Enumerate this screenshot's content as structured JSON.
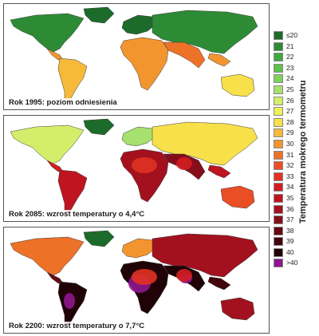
{
  "legend": {
    "title": "Temperatura mokrego termometru",
    "items": [
      {
        "label": "≤20",
        "color": "#1d6b2a"
      },
      {
        "label": "21",
        "color": "#2e8b35"
      },
      {
        "label": "22",
        "color": "#41a83c"
      },
      {
        "label": "23",
        "color": "#5cc24a"
      },
      {
        "label": "24",
        "color": "#7dd35a"
      },
      {
        "label": "25",
        "color": "#a6e06e"
      },
      {
        "label": "26",
        "color": "#d4ee6b"
      },
      {
        "label": "27",
        "color": "#eef25a"
      },
      {
        "label": "28",
        "color": "#f8e04a"
      },
      {
        "label": "29",
        "color": "#f7b93a"
      },
      {
        "label": "30",
        "color": "#f3952f"
      },
      {
        "label": "31",
        "color": "#ee7128"
      },
      {
        "label": "32",
        "color": "#e94e24"
      },
      {
        "label": "33",
        "color": "#e13222"
      },
      {
        "label": "34",
        "color": "#d21e22"
      },
      {
        "label": "35",
        "color": "#be1520"
      },
      {
        "label": "36",
        "color": "#a3111f"
      },
      {
        "label": "37",
        "color": "#850e1a"
      },
      {
        "label": "38",
        "color": "#650a14"
      },
      {
        "label": "39",
        "color": "#42060d"
      },
      {
        "label": "40",
        "color": "#200306"
      },
      {
        "label": ">40",
        "color": "#8e168e"
      }
    ]
  },
  "panels": [
    {
      "caption": "Rok 1995: poziom odniesienia",
      "level": 0
    },
    {
      "caption": "Rok 2085: wzrost temperatury o 4,4°C",
      "level": 1
    },
    {
      "caption": "Rok 2200: wzrost temperatury o 7,7°C",
      "level": 2
    }
  ]
}
